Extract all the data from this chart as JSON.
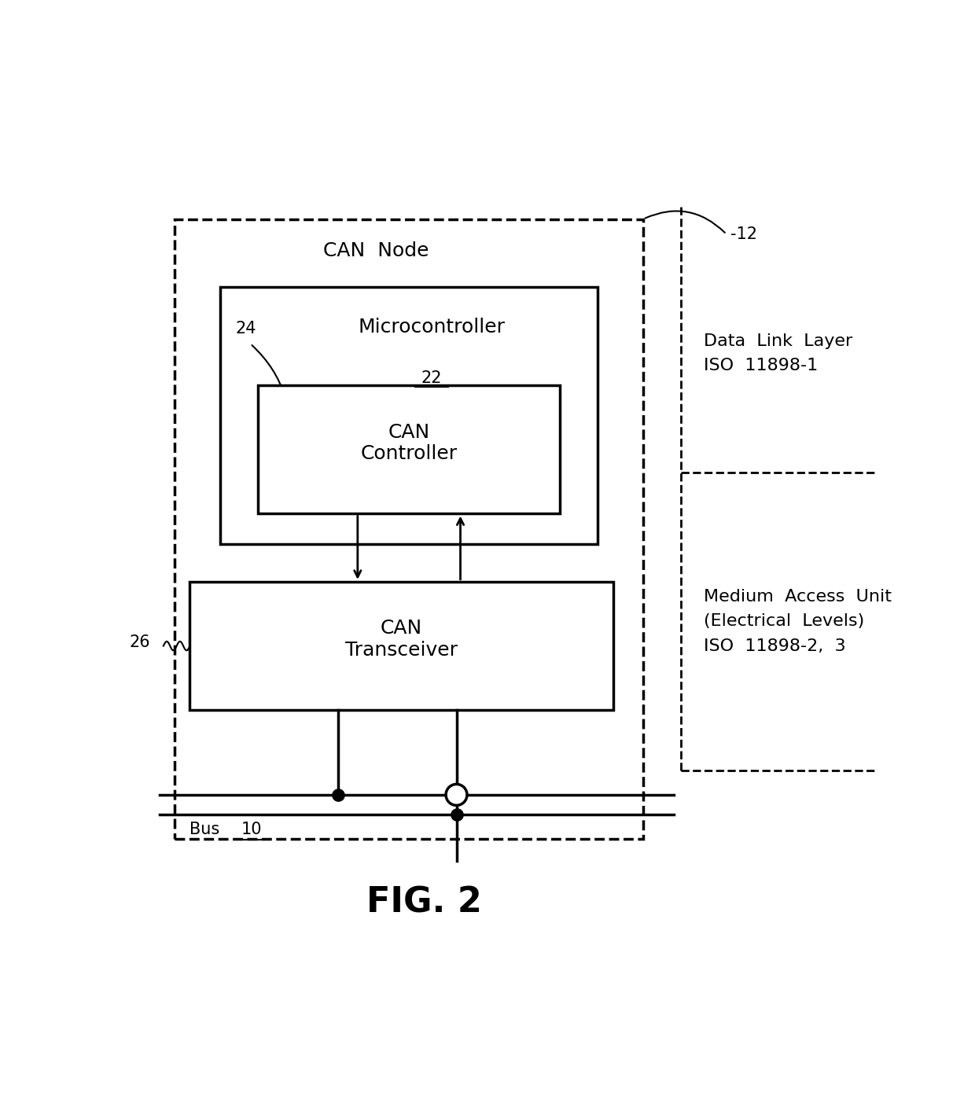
{
  "bg_color": "#ffffff",
  "fig_label": "FIG. 2",
  "can_node_label": "CAN  Node",
  "ref_12": "-12",
  "ref_22": "22",
  "ref_24": "24",
  "ref_26": "26",
  "ref_10": "10",
  "bus_label": "Bus",
  "microcontroller_label": "Microcontroller",
  "can_controller_label": "CAN\nController",
  "can_transceiver_label": "CAN\nTransceiver",
  "data_link_label": "Data  Link  Layer\nISO  11898-1",
  "medium_access_label": "Medium  Access  Unit\n(Electrical  Levels)\nISO  11898-2,  3",
  "font_size_main": 18,
  "font_size_label": 16,
  "font_size_fig": 32,
  "font_size_ref": 15
}
